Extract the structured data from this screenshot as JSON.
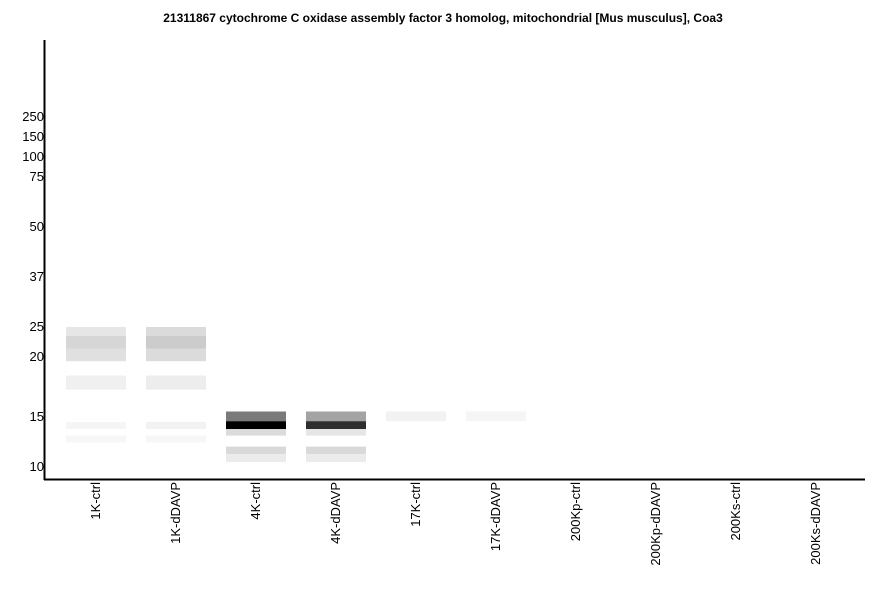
{
  "chart_data": {
    "type": "heatmap",
    "title": "21311867 cytochrome C oxidase assembly factor 3 homolog, mitochondrial [Mus musculus], Coa3",
    "xlabel": "",
    "ylabel": "",
    "y_scale": "log",
    "y_ticks": [
      250,
      150,
      100,
      75,
      50,
      37,
      25,
      20,
      15,
      10
    ],
    "lanes": [
      "1K-ctrl",
      "1K-dDAVP",
      "4K-ctrl",
      "4K-dDAVP",
      "17K-ctrl",
      "17K-dDAVP",
      "200Kp-ctrl",
      "200Kp-dDAVP",
      "200Ks-ctrl",
      "200Ks-dDAVP"
    ],
    "bands": [
      {
        "lane": 0,
        "mw_top": 25,
        "mw_bottom": 23.4,
        "intensity": 0.1
      },
      {
        "lane": 0,
        "mw_top": 23.4,
        "mw_bottom": 21.3,
        "intensity": 0.16
      },
      {
        "lane": 0,
        "mw_top": 21.3,
        "mw_bottom": 19.6,
        "intensity": 0.12
      },
      {
        "lane": 0,
        "mw_top": 18.3,
        "mw_bottom": 17.1,
        "intensity": 0.06
      },
      {
        "lane": 0,
        "mw_top": 14.4,
        "mw_bottom": 13.6,
        "intensity": 0.04
      },
      {
        "lane": 0,
        "mw_top": 12.9,
        "mw_bottom": 12.2,
        "intensity": 0.03
      },
      {
        "lane": 1,
        "mw_top": 25,
        "mw_bottom": 23.4,
        "intensity": 0.14
      },
      {
        "lane": 1,
        "mw_top": 23.4,
        "mw_bottom": 21.3,
        "intensity": 0.2
      },
      {
        "lane": 1,
        "mw_top": 21.3,
        "mw_bottom": 19.6,
        "intensity": 0.14
      },
      {
        "lane": 1,
        "mw_top": 18.3,
        "mw_bottom": 17.1,
        "intensity": 0.07
      },
      {
        "lane": 1,
        "mw_top": 14.4,
        "mw_bottom": 13.6,
        "intensity": 0.05
      },
      {
        "lane": 1,
        "mw_top": 12.9,
        "mw_bottom": 12.2,
        "intensity": 0.03
      },
      {
        "lane": 2,
        "mw_top": 15.4,
        "mw_bottom": 14.5,
        "intensity": 0.52
      },
      {
        "lane": 2,
        "mw_top": 14.5,
        "mw_bottom": 13.6,
        "intensity": 1.0
      },
      {
        "lane": 2,
        "mw_top": 13.6,
        "mw_bottom": 12.9,
        "intensity": 0.14
      },
      {
        "lane": 2,
        "mw_top": 11.8,
        "mw_bottom": 11.1,
        "intensity": 0.15
      },
      {
        "lane": 2,
        "mw_top": 11.1,
        "mw_bottom": 10.4,
        "intensity": 0.08
      },
      {
        "lane": 3,
        "mw_top": 15.4,
        "mw_bottom": 14.5,
        "intensity": 0.36
      },
      {
        "lane": 3,
        "mw_top": 14.5,
        "mw_bottom": 13.6,
        "intensity": 0.82
      },
      {
        "lane": 3,
        "mw_top": 13.6,
        "mw_bottom": 12.9,
        "intensity": 0.1
      },
      {
        "lane": 3,
        "mw_top": 11.8,
        "mw_bottom": 11.1,
        "intensity": 0.15
      },
      {
        "lane": 3,
        "mw_top": 11.1,
        "mw_bottom": 10.4,
        "intensity": 0.08
      },
      {
        "lane": 4,
        "mw_top": 15.4,
        "mw_bottom": 14.5,
        "intensity": 0.05
      },
      {
        "lane": 5,
        "mw_top": 15.4,
        "mw_bottom": 14.5,
        "intensity": 0.04
      }
    ]
  }
}
